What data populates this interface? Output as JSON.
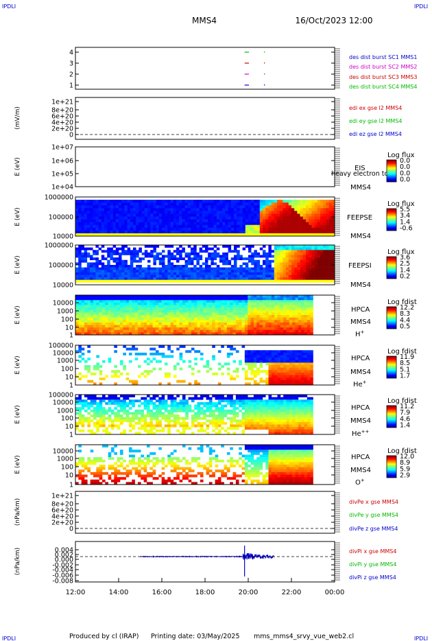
{
  "header": {
    "corner_label": "IPDLI",
    "spacecraft": "MMS4",
    "datetime": "16/Oct/2023 12:00"
  },
  "footer": {
    "produced_by": "Produced by cl (IRAP)",
    "printing_date": "Printing date: 03/May/2025",
    "script": "mms_mms4_srvy_vue_web2.cl"
  },
  "colors": {
    "blue": "#0000cc",
    "red": "#cc0000",
    "magenta": "#cc00cc",
    "green": "#00bb00",
    "axis": "#000000"
  },
  "chart_data": [
    {
      "type": "line",
      "panel": "burst",
      "yticks": [
        "1",
        "2",
        "3",
        "4"
      ],
      "ylim": [
        0.5,
        4.5
      ],
      "series": [
        {
          "name": "des dist burst SC1 MMS1",
          "color": "#0000cc"
        },
        {
          "name": "des dist burst SC2 MMS2",
          "color": "#cc00cc"
        },
        {
          "name": "des dist burst SC3 MMS3",
          "color": "#cc0000"
        },
        {
          "name": "des dist burst SC4 MMS4",
          "color": "#00bb00"
        }
      ],
      "intervals": [
        {
          "y": 4,
          "x": [
            "19:50",
            "20:02"
          ],
          "color": "#00bb00"
        },
        {
          "y": 3,
          "x": [
            "19:50",
            "20:02"
          ],
          "color": "#cc0000"
        },
        {
          "y": 2,
          "x": [
            "19:50",
            "20:02"
          ],
          "color": "#cc00cc"
        },
        {
          "y": 1,
          "x": [
            "19:50",
            "20:02"
          ],
          "color": "#0000cc"
        }
      ]
    },
    {
      "type": "line",
      "panel": "edi",
      "ylabel": "(mV/m)",
      "yticks": [
        "0",
        "2e+20",
        "4e+20",
        "6e+20",
        "8e+20",
        "1e+21"
      ],
      "ylim": [
        0,
        1e+21
      ],
      "series": [
        {
          "name": "edi ex gse l2 MMS4",
          "color": "#cc0000"
        },
        {
          "name": "edi ey gse l2 MMS4",
          "color": "#00bb00"
        },
        {
          "name": "edi ez gse l2 MMS4",
          "color": "#0000cc"
        }
      ]
    },
    {
      "type": "heatmap",
      "panel": "eis",
      "ylabel": "E (eV)",
      "yticks": [
        "1e+04",
        "1e+05",
        "1e+06",
        "1e+07"
      ],
      "instrument": "EIS",
      "overlay_label": "heavy electron to",
      "spacecraft": "MMS4",
      "cbar_title": "Log flux",
      "cbar_ticks": [
        "0.0",
        "0.0",
        "0.0",
        "0.0"
      ]
    },
    {
      "type": "heatmap",
      "panel": "feepse",
      "ylabel": "E (eV)",
      "yticks": [
        "10000",
        "100000",
        "1000000"
      ],
      "instrument": "FEEPSE",
      "spacecraft": "MMS4",
      "cbar_title": "Log flux",
      "cbar_ticks": [
        "5.5",
        "3.4",
        "1.4",
        "-0.6"
      ]
    },
    {
      "type": "heatmap",
      "panel": "feepsi",
      "ylabel": "E (eV)",
      "yticks": [
        "10000",
        "100000",
        "1000000"
      ],
      "instrument": "FEEPSI",
      "spacecraft": "MMS4",
      "cbar_title": "Log flux",
      "cbar_ticks": [
        "3.6",
        "2.5",
        "1.4",
        "0.2"
      ]
    },
    {
      "type": "heatmap",
      "panel": "hpca_h",
      "ylabel": "E (eV)",
      "yticks": [
        "1",
        "10",
        "100",
        "1000",
        "10000"
      ],
      "instrument": "HPCA",
      "spacecraft": "MMS4",
      "species": "H",
      "species_sup": "+",
      "cbar_title": "Log fdist",
      "cbar_ticks": [
        "12.2",
        "8.3",
        "4.4",
        "0.5"
      ]
    },
    {
      "type": "heatmap",
      "panel": "hpca_he",
      "ylabel": "E (eV)",
      "yticks": [
        "1",
        "10",
        "100",
        "1000",
        "10000",
        "100000"
      ],
      "instrument": "HPCA",
      "spacecraft": "MMS4",
      "species": "He",
      "species_sup": "+",
      "cbar_title": "Log fdist",
      "cbar_ticks": [
        "11.9",
        "8.5",
        "5.1",
        "1.7"
      ]
    },
    {
      "type": "heatmap",
      "panel": "hpca_hepp",
      "ylabel": "E (eV)",
      "yticks": [
        "1",
        "10",
        "100",
        "1000",
        "10000",
        "100000"
      ],
      "instrument": "HPCA",
      "spacecraft": "MMS4",
      "species": "He",
      "species_sup": "++",
      "cbar_title": "Log fdist",
      "cbar_ticks": [
        "11.2",
        "7.9",
        "4.6",
        "1.4"
      ]
    },
    {
      "type": "heatmap",
      "panel": "hpca_o",
      "ylabel": "E (eV)",
      "yticks": [
        "1",
        "10",
        "100",
        "1000",
        "10000"
      ],
      "instrument": "HPCA",
      "spacecraft": "MMS4",
      "species": "O",
      "species_sup": "+",
      "cbar_title": "Log fdist",
      "cbar_ticks": [
        "12.0",
        "8.9",
        "5.9",
        "2.9"
      ]
    },
    {
      "type": "line",
      "panel": "divpe",
      "ylabel": "(nPa/km)",
      "yticks": [
        "0",
        "2e+20",
        "4e+20",
        "6e+20",
        "8e+20",
        "1e+21"
      ],
      "ylim": [
        0,
        1e+21
      ],
      "series": [
        {
          "name": "divPe x gse MMS4",
          "color": "#cc0000"
        },
        {
          "name": "divPe y gse MMS4",
          "color": "#00bb00"
        },
        {
          "name": "divPe z gse MMS4",
          "color": "#0000cc"
        }
      ]
    },
    {
      "type": "line",
      "panel": "divpi",
      "ylabel": "(nPa/km)",
      "yticks": [
        "-0.008",
        "-0.006",
        "-0.004",
        "-0.002",
        "0.000",
        "0.002",
        "0.004"
      ],
      "ylim": [
        -0.008,
        0.005
      ],
      "series": [
        {
          "name": "divPi x gse MMS4",
          "color": "#cc0000"
        },
        {
          "name": "divPi y gse MMS4",
          "color": "#00bb00"
        },
        {
          "name": "divPi z gse MMS4",
          "color": "#0000cc"
        }
      ]
    },
    {
      "type": "axis",
      "panel": "time",
      "xticks": [
        "12:00",
        "14:00",
        "16:00",
        "18:00",
        "20:00",
        "22:00",
        "00:00"
      ],
      "xlim": [
        "12:00",
        "00:00"
      ]
    }
  ]
}
